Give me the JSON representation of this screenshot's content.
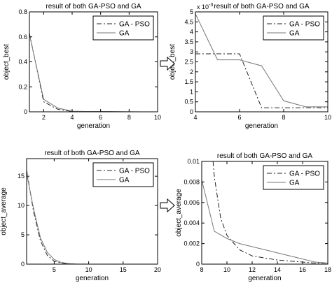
{
  "arrow_icon_name": "right-arrow-icon",
  "chart_data": [
    {
      "type": "line",
      "title": "result of both GA-PSO and GA",
      "xlabel": "generation",
      "ylabel": "object_best",
      "xlim": [
        1,
        10
      ],
      "ylim": [
        0,
        0.8
      ],
      "xticks": [
        2,
        4,
        6,
        8,
        10
      ],
      "yticks": [
        0,
        0.2,
        0.4,
        0.6,
        0.8
      ],
      "xtick_labels": [
        "2",
        "4",
        "6",
        "8",
        "10"
      ],
      "ytick_labels": [
        "0",
        "0.2",
        "0.4",
        "0.6",
        "0.8"
      ],
      "exponent_label": "",
      "grid": false,
      "legend_position": "top-right",
      "series": [
        {
          "name": "GA - PSO",
          "style": "dash-dot",
          "x": [
            1,
            2,
            3,
            4,
            5,
            6,
            7,
            8,
            9,
            10
          ],
          "y": [
            0.63,
            0.08,
            0.02,
            0.003,
            0.003,
            0.003,
            0.0002,
            0.0002,
            0.0002,
            0.0002
          ]
        },
        {
          "name": "GA",
          "style": "solid",
          "x": [
            1,
            2,
            3,
            4,
            5,
            6,
            7,
            8,
            9,
            10
          ],
          "y": [
            0.62,
            0.1,
            0.03,
            0.005,
            0.0026,
            0.0026,
            0.0023,
            0.0005,
            0.0002,
            0.0002
          ]
        }
      ]
    },
    {
      "type": "line",
      "title": "result of both GA-PSO and GA",
      "xlabel": "generation",
      "ylabel": "object_best",
      "xlim": [
        4,
        10
      ],
      "ylim": [
        0,
        0.005
      ],
      "xticks": [
        4,
        6,
        8,
        10
      ],
      "yticks": [
        0,
        0.0005,
        0.001,
        0.0015,
        0.002,
        0.0025,
        0.003,
        0.0035,
        0.004,
        0.0045,
        0.005
      ],
      "xtick_labels": [
        "4",
        "6",
        "8",
        "10"
      ],
      "ytick_labels": [
        "0",
        "0.5",
        "1",
        "1.5",
        "2",
        "2.5",
        "3",
        "3.5",
        "4",
        "4.5",
        "5"
      ],
      "exponent_label": "x 10",
      "exponent_power": "-3",
      "grid": false,
      "legend_position": "top-right",
      "series": [
        {
          "name": "GA - PSO",
          "style": "dash-dot",
          "x": [
            4,
            5,
            6,
            7,
            8,
            9,
            10
          ],
          "y": [
            0.0029,
            0.0029,
            0.0029,
            0.0002,
            0.0002,
            0.0002,
            0.0002
          ]
        },
        {
          "name": "GA",
          "style": "solid",
          "x": [
            4,
            5,
            6,
            7,
            8,
            9,
            10
          ],
          "y": [
            0.0049,
            0.0026,
            0.0026,
            0.0023,
            0.00055,
            0.00025,
            0.00025
          ]
        }
      ]
    },
    {
      "type": "line",
      "title": "result of both GA-PSO and GA",
      "xlabel": "generation",
      "ylabel": "object_average",
      "xlim": [
        1,
        20
      ],
      "ylim": [
        0,
        18
      ],
      "xticks": [
        5,
        10,
        15,
        20
      ],
      "yticks": [
        0,
        5,
        10,
        15
      ],
      "xtick_labels": [
        "5",
        "10",
        "15",
        "20"
      ],
      "ytick_labels": [
        "0",
        "5",
        "10",
        "15"
      ],
      "exponent_label": "",
      "grid": false,
      "legend_position": "top-right",
      "series": [
        {
          "name": "GA - PSO",
          "style": "dash-dot",
          "x": [
            1,
            2,
            3,
            4,
            5,
            6,
            7,
            8,
            9,
            10,
            11,
            12,
            13,
            14,
            15,
            16,
            17,
            18,
            19,
            20
          ],
          "y": [
            16,
            9,
            4,
            1.5,
            0.5,
            0.2,
            0.05,
            0.01,
            0.01,
            0.003,
            0.002,
            0.001,
            0.001,
            0.0005,
            0.0003,
            0.0002,
            0.0001,
            0.0001,
            0.0001,
            0.0001
          ]
        },
        {
          "name": "GA",
          "style": "solid",
          "x": [
            1,
            2,
            3,
            4,
            5,
            6,
            7,
            8,
            9,
            10,
            11,
            12,
            13,
            14,
            15,
            16,
            17,
            18,
            19,
            20
          ],
          "y": [
            15.5,
            9.5,
            4.5,
            2,
            0.8,
            0.3,
            0.1,
            0.008,
            0.003,
            0.0025,
            0.002,
            0.0017,
            0.0014,
            0.0011,
            0.0008,
            0.0005,
            0.0003,
            0.0001,
            0.0001,
            0.0001
          ]
        }
      ]
    },
    {
      "type": "line",
      "title": "result of both GA-PSO and GA",
      "xlabel": "generation",
      "ylabel": "object_average",
      "xlim": [
        8,
        18
      ],
      "ylim": [
        0,
        0.01
      ],
      "xticks": [
        8,
        10,
        12,
        14,
        16,
        18
      ],
      "yticks": [
        0,
        0.002,
        0.004,
        0.006,
        0.008,
        0.01
      ],
      "xtick_labels": [
        "8",
        "10",
        "12",
        "14",
        "16",
        "18"
      ],
      "ytick_labels": [
        "0",
        "0.002",
        "0.004",
        "0.006",
        "0.008",
        "0.01"
      ],
      "exponent_label": "",
      "grid": false,
      "legend_position": "top-right",
      "series": [
        {
          "name": "GA - PSO",
          "style": "dash-dot",
          "x": [
            8.9,
            9,
            9.5,
            10,
            11,
            12,
            13,
            14,
            15,
            16,
            17,
            18
          ],
          "y": [
            0.01,
            0.0085,
            0.0045,
            0.0028,
            0.0014,
            0.0008,
            0.0006,
            0.0004,
            0.0003,
            0.0002,
            0.0001,
            0.0001
          ]
        },
        {
          "name": "GA",
          "style": "solid",
          "x": [
            8,
            9,
            10,
            11,
            12,
            13,
            14,
            15,
            16,
            17,
            18
          ],
          "y": [
            0.0082,
            0.0032,
            0.0025,
            0.002,
            0.0017,
            0.0014,
            0.0011,
            0.0008,
            0.0005,
            0.0002,
            0.0001
          ]
        }
      ]
    }
  ]
}
